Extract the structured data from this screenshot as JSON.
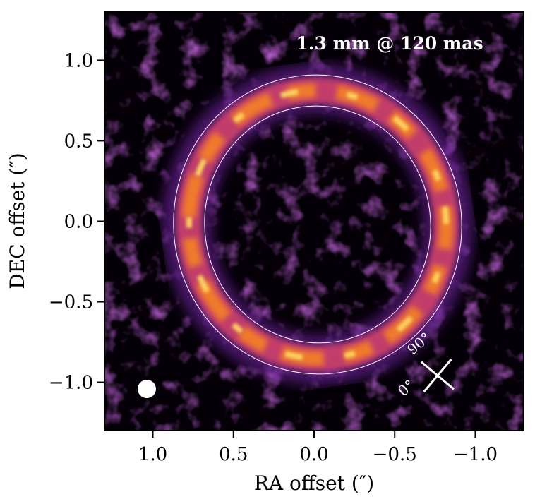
{
  "chart_data": {
    "type": "image",
    "title": "1.3 mm @ 120 mas",
    "x_label": "RA offset  (″)",
    "y_label": "DEC offset  (″)",
    "xlim": [
      1.3,
      -1.3
    ],
    "ylim": [
      -1.3,
      1.3
    ],
    "xticks": [
      {
        "value": 1.0,
        "label": "1.0"
      },
      {
        "value": 0.5,
        "label": "0.5"
      },
      {
        "value": 0,
        "label": "0.0"
      },
      {
        "value": -0.5,
        "label": "−0.5"
      },
      {
        "value": -1.0,
        "label": "−1.0"
      }
    ],
    "yticks": [
      {
        "value": 1.0,
        "label": "1.0"
      },
      {
        "value": 0.5,
        "label": "0.5"
      },
      {
        "value": 0,
        "label": "0.0"
      },
      {
        "value": -0.5,
        "label": "−0.5"
      },
      {
        "value": -1.0,
        "label": "−1.0"
      }
    ],
    "annotations": [
      "90°",
      "0°"
    ]
  }
}
